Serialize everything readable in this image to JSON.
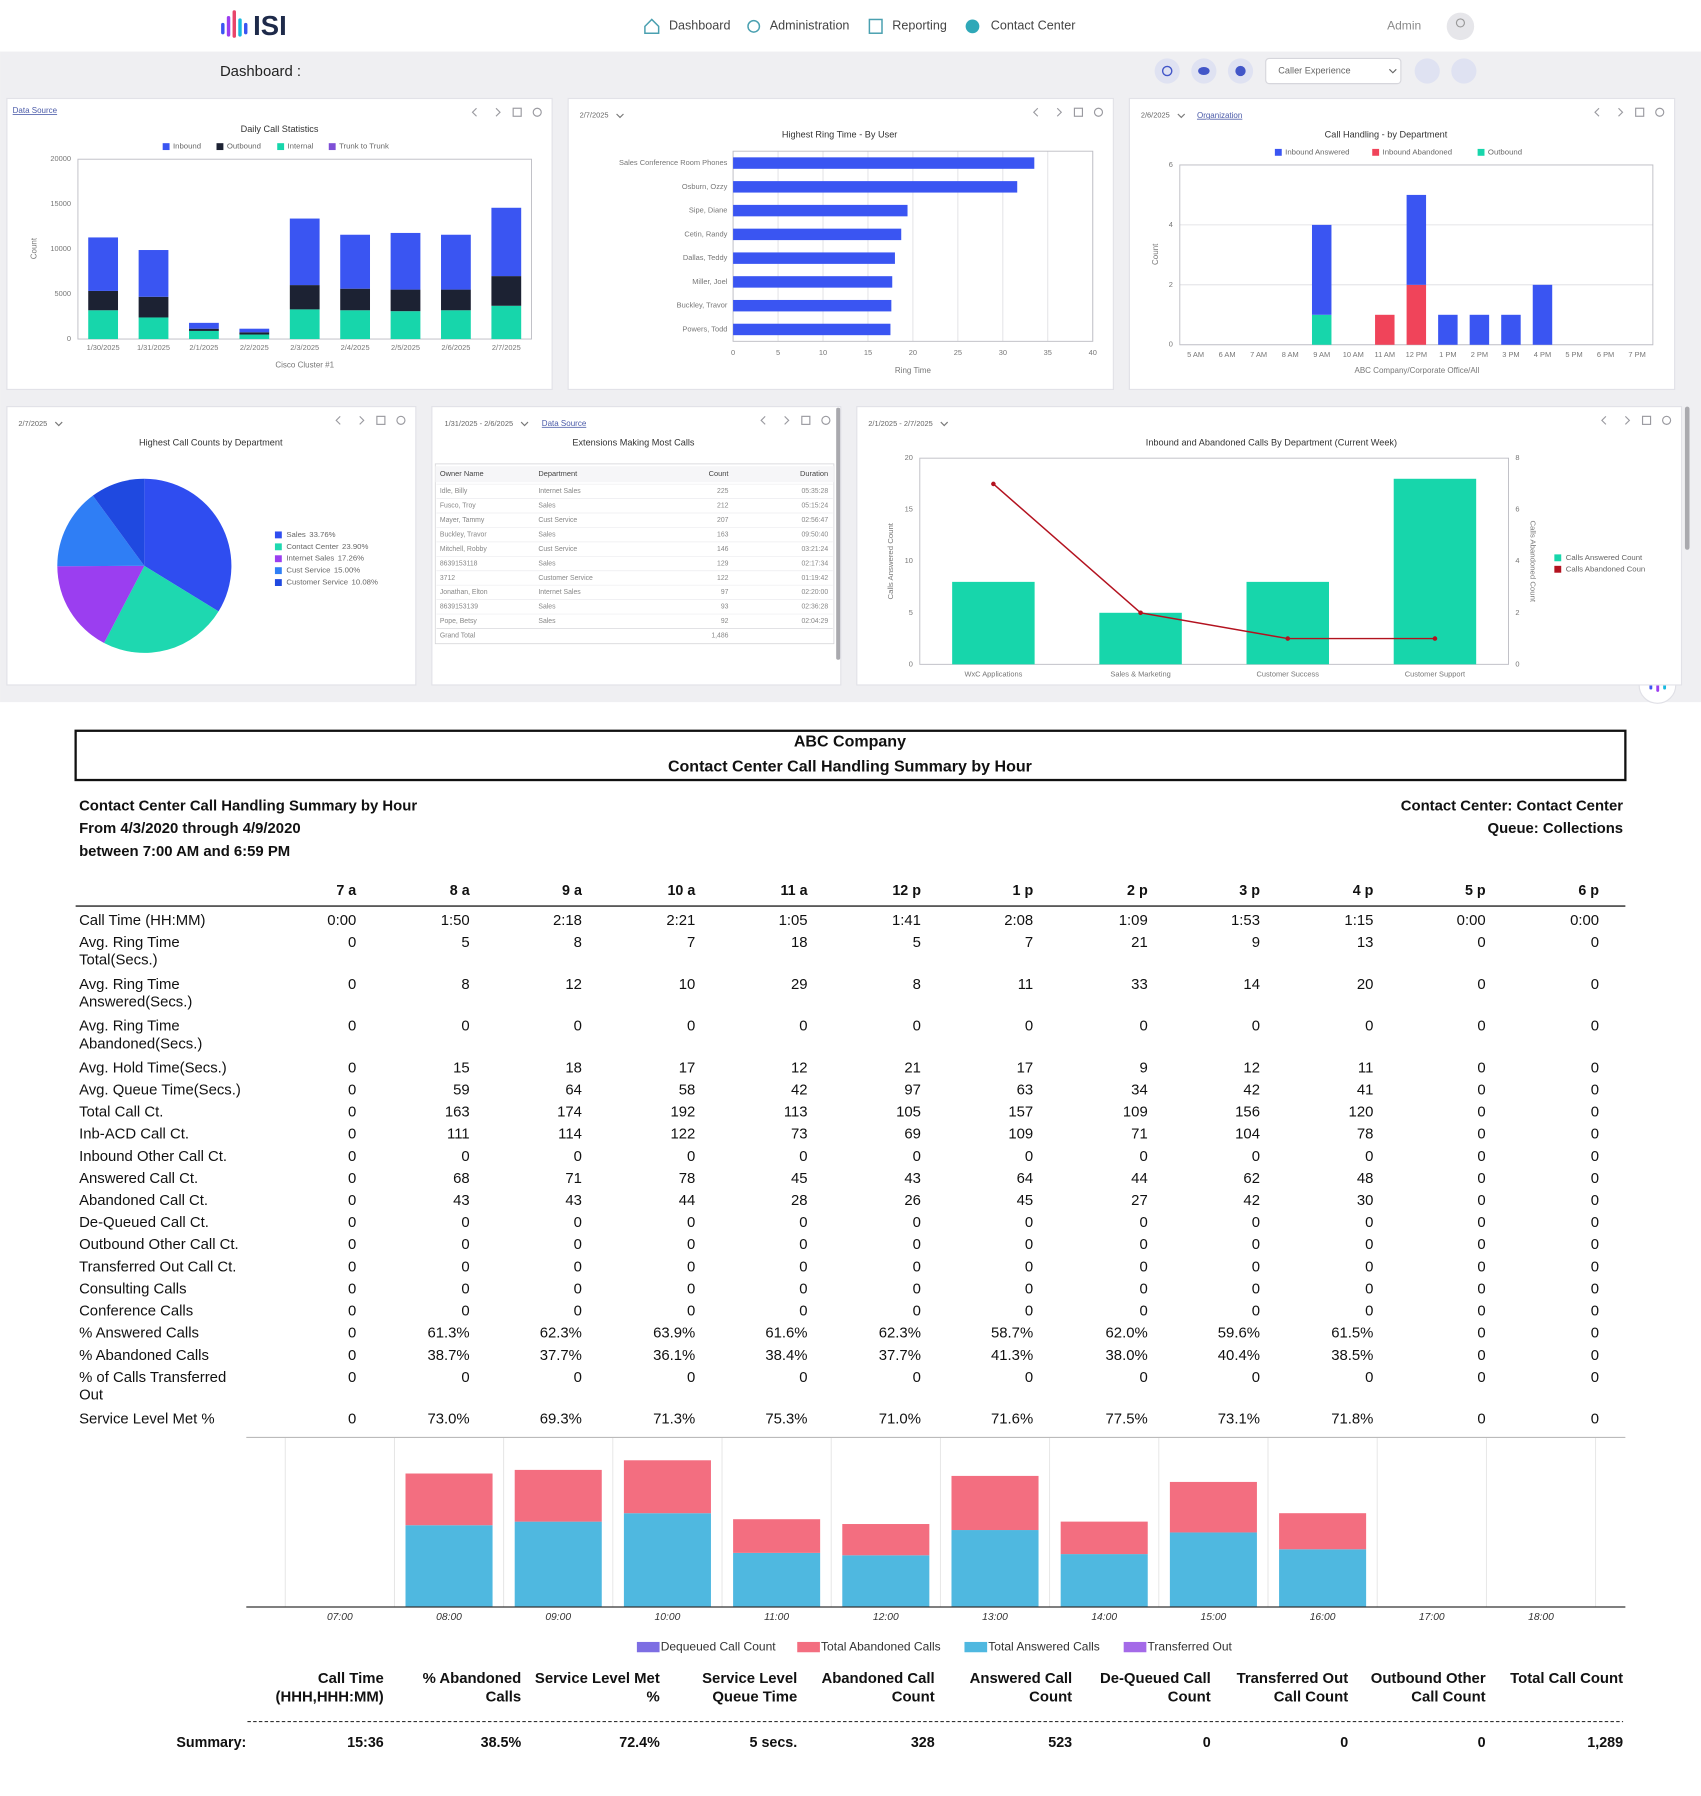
{
  "nav": {
    "logo": "ISI",
    "items": [
      "Dashboard",
      "Administration",
      "Reporting",
      "Contact Center"
    ],
    "user": "Admin"
  },
  "toolbar": {
    "title": "Dashboard :",
    "selector": "Caller Experience"
  },
  "chart_data": [
    {
      "type": "stacked_bar",
      "link": "Data Source",
      "title": "Daily Call Statistics",
      "categories": [
        "1/30/2025",
        "1/31/2025",
        "2/1/2025",
        "2/2/2025",
        "2/3/2025",
        "2/4/2025",
        "2/5/2025",
        "2/6/2025",
        "2/7/2025"
      ],
      "series": [
        {
          "name": "Inbound",
          "color": "#3a55f2",
          "values": [
            5950,
            5200,
            650,
            400,
            7400,
            6000,
            6300,
            6100,
            7600
          ]
        },
        {
          "name": "Outbound",
          "color": "#1c2233",
          "values": [
            2150,
            2300,
            250,
            250,
            2700,
            2400,
            2400,
            2300,
            3300
          ]
        },
        {
          "name": "Internal",
          "color": "#17d6ab",
          "values": [
            3200,
            2400,
            900,
            500,
            3300,
            3200,
            3100,
            3200,
            3700
          ]
        },
        {
          "name": "Trunk to Trunk",
          "color": "#7e4fd6",
          "values": [
            0,
            0,
            0,
            0,
            0,
            0,
            0,
            0,
            0
          ]
        }
      ],
      "ylim": [
        0,
        20000
      ],
      "yticks": [
        0,
        5000,
        10000,
        15000,
        20000
      ],
      "ylabel": "Count",
      "xlabel": "Cisco Cluster #1",
      "grid": false
    },
    {
      "type": "bar",
      "orientation": "horizontal",
      "filter": "2/7/2025",
      "title": "Highest Ring Time - By User",
      "categories": [
        "Sales Conference Room Phones",
        "Osburn, Ozzy",
        "Sipe, Diane",
        "Cetin, Randy",
        "Dallas, Teddy",
        "Miller, Joel",
        "Buckley, Travor",
        "Powers, Todd"
      ],
      "values": [
        33.5,
        31.6,
        19.4,
        18.7,
        18,
        17.7,
        17.6,
        17.5
      ],
      "color": "#3a55f2",
      "xlim": [
        0,
        40
      ],
      "xticks": [
        0,
        5,
        10,
        15,
        20,
        25,
        30,
        35,
        40
      ],
      "xlabel": "Ring Time",
      "grid": true
    },
    {
      "type": "stacked_bar",
      "filter": "2/6/2025",
      "link": "Organization",
      "title": "Call Handling - by Department",
      "categories": [
        "5 AM",
        "6 AM",
        "7 AM",
        "8 AM",
        "9 AM",
        "10 AM",
        "11 AM",
        "12 PM",
        "1 PM",
        "2 PM",
        "3 PM",
        "4 PM",
        "5 PM",
        "6 PM",
        "7 PM"
      ],
      "series": [
        {
          "name": "Inbound Answered",
          "color": "#3a55f2",
          "values": [
            0,
            0,
            0,
            0,
            3,
            0,
            0,
            3,
            1,
            1,
            1,
            2,
            0,
            0,
            0
          ]
        },
        {
          "name": "Inbound Abandoned",
          "color": "#f0445a",
          "values": [
            0,
            0,
            0,
            0,
            0,
            0,
            1,
            2,
            0,
            0,
            0,
            0,
            0,
            0,
            0
          ]
        },
        {
          "name": "Outbound",
          "color": "#17d6ab",
          "values": [
            0,
            0,
            0,
            0,
            1,
            0,
            0,
            0,
            0,
            0,
            0,
            0,
            0,
            0,
            0
          ]
        }
      ],
      "ylim": [
        0,
        6
      ],
      "yticks": [
        0,
        2,
        4,
        6
      ],
      "ylabel": "Count",
      "xlabel": "ABC Company/Corporate Office/All",
      "grid": true
    },
    {
      "type": "pie",
      "filter": "2/7/2025",
      "title": "Highest Call Counts by Department",
      "categories": [
        "Sales",
        "Contact Center",
        "Internet Sales",
        "Cust Service",
        "Customer Service"
      ],
      "values": [
        33.76,
        23.9,
        17.26,
        15,
        10.08
      ],
      "value_labels": [
        "33.76%",
        "23.90%",
        "17.26%",
        "15.00%",
        "10.08%"
      ],
      "colors": [
        "#2f4df0",
        "#1ed8b0",
        "#9b3ef0",
        "#2f7ef5",
        "#1f49e0"
      ]
    },
    {
      "type": "combo",
      "filter": "2/1/2025 - 2/7/2025",
      "title": "Inbound and Abandoned Calls By Department (Current Week)",
      "categories": [
        "WxC Applications",
        "Sales & Marketing",
        "Customer Success",
        "Customer Support"
      ],
      "series": [
        {
          "name": "Calls Answered Count",
          "color": "#17d6ab",
          "values": [
            8,
            5,
            8,
            18
          ]
        },
        {
          "name": "Calls Abandoned Coun",
          "color": "#b3121f",
          "values": [
            7,
            2,
            1,
            1
          ],
          "axis": "y2"
        }
      ],
      "ylim": [
        0,
        20
      ],
      "yticks": [
        0,
        5,
        10,
        15,
        20
      ],
      "y2lim": [
        0,
        8
      ],
      "y2ticks": [
        0,
        2,
        4,
        6,
        8
      ],
      "ylabel": "Calls Answered Count",
      "y2label": "Calls Abandoned Count"
    },
    {
      "type": "stacked_bar",
      "categories": [
        "07:00",
        "08:00",
        "09:00",
        "10:00",
        "11:00",
        "12:00",
        "13:00",
        "14:00",
        "15:00",
        "16:00",
        "17:00",
        "18:00"
      ],
      "series": [
        {
          "name": "Dequeued Call Count",
          "color": "#7d6ee3",
          "values": [
            0,
            0,
            0,
            0,
            0,
            0,
            0,
            0,
            0,
            0,
            0,
            0
          ]
        },
        {
          "name": "Total Abandoned Calls",
          "color": "#f36e80",
          "values": [
            0,
            43,
            43,
            44,
            28,
            26,
            45,
            27,
            42,
            30,
            0,
            0
          ]
        },
        {
          "name": "Total Answered Calls",
          "color": "#4fb8e0",
          "values": [
            0,
            68,
            71,
            78,
            45,
            43,
            64,
            44,
            62,
            48,
            0,
            0
          ]
        },
        {
          "name": "Transferred Out",
          "color": "#a46ae8",
          "values": [
            0,
            0,
            0,
            0,
            0,
            0,
            0,
            0,
            0,
            0,
            0,
            0
          ]
        }
      ],
      "grid": false
    }
  ],
  "extensions_widget": {
    "filter": "1/31/2025 - 2/6/2025",
    "link": "Data Source",
    "title": "Extensions Making Most Calls",
    "columns": [
      "Owner Name",
      "Department",
      "Count",
      "Duration"
    ],
    "rows": [
      [
        "Idle, Billy",
        "Internet Sales",
        "225",
        "05:35:28"
      ],
      [
        "Fusco, Troy",
        "Sales",
        "212",
        "05:15:24"
      ],
      [
        "Mayer, Tammy",
        "Cust Service",
        "207",
        "02:56:47"
      ],
      [
        "Buckley, Travor",
        "Sales",
        "163",
        "09:50:40"
      ],
      [
        "Mitchell, Robby",
        "Cust Service",
        "146",
        "03:21:24"
      ],
      [
        "8639153118",
        "Sales",
        "129",
        "02:17:34"
      ],
      [
        "3712",
        "Customer Service",
        "122",
        "01:19:42"
      ],
      [
        "Jonathan, Elton",
        "Internet Sales",
        "97",
        "02:20:00"
      ],
      [
        "8639153139",
        "Sales",
        "93",
        "02:36:28"
      ],
      [
        "Pope, Betsy",
        "Sales",
        "92",
        "02:04:29"
      ]
    ],
    "total": {
      "label": "Grand Total",
      "count": "1,486"
    }
  },
  "report": {
    "title_lines": [
      "ABC Company",
      "Contact Center Call Handling Summary by Hour"
    ],
    "header_left": [
      "Contact Center Call Handling Summary by Hour",
      "From 4/3/2020 through 4/9/2020",
      "between 7:00 AM and 6:59 PM"
    ],
    "header_right": [
      "Contact Center: Contact Center",
      "Queue: Collections"
    ],
    "columns": [
      "7 a",
      "8 a",
      "9 a",
      "10 a",
      "11 a",
      "12 p",
      "1 p",
      "2 p",
      "3 p",
      "4 p",
      "5 p",
      "6 p"
    ],
    "rows": [
      {
        "label": [
          "Call Time (HH:MM)"
        ],
        "values": [
          "0:00",
          "1:50",
          "2:18",
          "2:21",
          "1:05",
          "1:41",
          "2:08",
          "1:09",
          "1:53",
          "1:15",
          "0:00",
          "0:00"
        ]
      },
      {
        "label": [
          "Avg. Ring Time",
          "Total(Secs.)"
        ],
        "values": [
          "0",
          "5",
          "8",
          "7",
          "18",
          "5",
          "7",
          "21",
          "9",
          "13",
          "0",
          "0"
        ]
      },
      {
        "label": [
          "Avg. Ring Time",
          "Answered(Secs.)"
        ],
        "values": [
          "0",
          "8",
          "12",
          "10",
          "29",
          "8",
          "11",
          "33",
          "14",
          "20",
          "0",
          "0"
        ]
      },
      {
        "label": [
          "Avg. Ring Time",
          "Abandoned(Secs.)"
        ],
        "values": [
          "0",
          "0",
          "0",
          "0",
          "0",
          "0",
          "0",
          "0",
          "0",
          "0",
          "0",
          "0"
        ]
      },
      {
        "label": [
          "Avg. Hold Time(Secs.)"
        ],
        "values": [
          "0",
          "15",
          "18",
          "17",
          "12",
          "21",
          "17",
          "9",
          "12",
          "11",
          "0",
          "0"
        ]
      },
      {
        "label": [
          "Avg. Queue Time(Secs.)"
        ],
        "values": [
          "0",
          "59",
          "64",
          "58",
          "42",
          "97",
          "63",
          "34",
          "42",
          "41",
          "0",
          "0"
        ]
      },
      {
        "label": [
          "Total Call Ct."
        ],
        "values": [
          "0",
          "163",
          "174",
          "192",
          "113",
          "105",
          "157",
          "109",
          "156",
          "120",
          "0",
          "0"
        ]
      },
      {
        "label": [
          "Inb-ACD Call Ct."
        ],
        "values": [
          "0",
          "111",
          "114",
          "122",
          "73",
          "69",
          "109",
          "71",
          "104",
          "78",
          "0",
          "0"
        ]
      },
      {
        "label": [
          "Inbound Other Call Ct."
        ],
        "values": [
          "0",
          "0",
          "0",
          "0",
          "0",
          "0",
          "0",
          "0",
          "0",
          "0",
          "0",
          "0"
        ]
      },
      {
        "label": [
          "Answered Call Ct."
        ],
        "values": [
          "0",
          "68",
          "71",
          "78",
          "45",
          "43",
          "64",
          "44",
          "62",
          "48",
          "0",
          "0"
        ]
      },
      {
        "label": [
          "Abandoned Call Ct."
        ],
        "values": [
          "0",
          "43",
          "43",
          "44",
          "28",
          "26",
          "45",
          "27",
          "42",
          "30",
          "0",
          "0"
        ]
      },
      {
        "label": [
          "De-Queued Call Ct."
        ],
        "values": [
          "0",
          "0",
          "0",
          "0",
          "0",
          "0",
          "0",
          "0",
          "0",
          "0",
          "0",
          "0"
        ]
      },
      {
        "label": [
          "Outbound Other Call Ct."
        ],
        "values": [
          "0",
          "0",
          "0",
          "0",
          "0",
          "0",
          "0",
          "0",
          "0",
          "0",
          "0",
          "0"
        ]
      },
      {
        "label": [
          "Transferred Out Call Ct."
        ],
        "values": [
          "0",
          "0",
          "0",
          "0",
          "0",
          "0",
          "0",
          "0",
          "0",
          "0",
          "0",
          "0"
        ]
      },
      {
        "label": [
          "Consulting Calls"
        ],
        "values": [
          "0",
          "0",
          "0",
          "0",
          "0",
          "0",
          "0",
          "0",
          "0",
          "0",
          "0",
          "0"
        ]
      },
      {
        "label": [
          "Conference Calls"
        ],
        "values": [
          "0",
          "0",
          "0",
          "0",
          "0",
          "0",
          "0",
          "0",
          "0",
          "0",
          "0",
          "0"
        ]
      },
      {
        "label": [
          "% Answered Calls"
        ],
        "values": [
          "0",
          "61.3%",
          "62.3%",
          "63.9%",
          "61.6%",
          "62.3%",
          "58.7%",
          "62.0%",
          "59.6%",
          "61.5%",
          "0",
          "0"
        ]
      },
      {
        "label": [
          "% Abandoned Calls"
        ],
        "values": [
          "0",
          "38.7%",
          "37.7%",
          "36.1%",
          "38.4%",
          "37.7%",
          "41.3%",
          "38.0%",
          "40.4%",
          "38.5%",
          "0",
          "0"
        ]
      },
      {
        "label": [
          "% of Calls Transferred",
          "Out"
        ],
        "values": [
          "0",
          "0",
          "0",
          "0",
          "0",
          "0",
          "0",
          "0",
          "0",
          "0",
          "0",
          "0"
        ]
      },
      {
        "label": [
          "Service Level Met %"
        ],
        "values": [
          "0",
          "73.0%",
          "69.3%",
          "71.3%",
          "75.3%",
          "71.0%",
          "71.6%",
          "77.5%",
          "73.1%",
          "71.8%",
          "0",
          "0"
        ]
      }
    ],
    "summary": {
      "label": "Summary:",
      "headers": [
        [
          "Call Time",
          "(HHH,HHH:MM)"
        ],
        [
          "% Abandoned",
          "Calls"
        ],
        [
          "Service Level Met",
          "%"
        ],
        [
          "Service Level",
          "Queue Time"
        ],
        [
          "Abandoned Call",
          "Count"
        ],
        [
          "Answered Call",
          "Count"
        ],
        [
          "De-Queued Call",
          "Count"
        ],
        [
          "Transferred Out",
          "Call Count"
        ],
        [
          "Outbound Other",
          "Call Count"
        ],
        [
          "Total Call Count"
        ]
      ],
      "values": [
        "15:36",
        "38.5%",
        "72.4%",
        "5 secs.",
        "328",
        "523",
        "0",
        "0",
        "0",
        "1,289"
      ]
    }
  }
}
